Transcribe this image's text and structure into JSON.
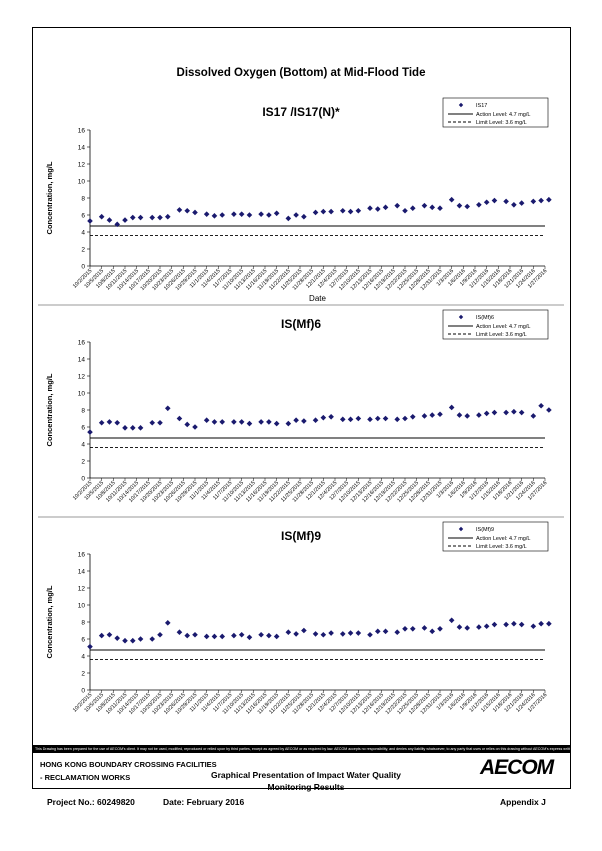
{
  "page": {
    "main_title": "Dissolved Oxygen (Bottom) at Mid-Flood Tide",
    "disclaimer": "This Drawing has been prepared for the use of AECOM's client. It may not be used, modified, reproduced or relied upon by third parties, except as agreed by AECOM or as required by law. AECOM accepts no responsibility, and denies any liability whatsoever, to any party that uses or relies on this drawing without AECOM's express written consent.",
    "project_name_1": "HONG KONG BOUNDARY CROSSING FACILITIES",
    "project_name_2": "- RECLAMATION WORKS",
    "doc_title_1": "Graphical Presentation of Impact Water Quality",
    "doc_title_2": "Monitoring Results",
    "logo": "AECOM",
    "project_no": "Project No.: 60249820",
    "date": "Date: February 2016",
    "appendix": "Appendix J"
  },
  "chart_data": [
    {
      "type": "scatter",
      "title": "IS17 /IS17(N)*",
      "xlabel": "Date",
      "ylabel": "Concentration, mg/L",
      "ylim": [
        0,
        16
      ],
      "yticks": [
        0,
        2,
        4,
        6,
        8,
        10,
        12,
        14,
        16
      ],
      "action_level": 4.7,
      "limit_level": 3.6,
      "legend": {
        "series": "IS17",
        "action": "Action Level: 4.7 mg/L",
        "limit": "Limit Level: 3.6 mg/L",
        "position": "top-right"
      },
      "xticks": [
        "10/2/2015",
        "10/5/2015",
        "10/8/2015",
        "10/11/2015",
        "10/14/2015",
        "10/17/2015",
        "10/20/2015",
        "10/23/2015",
        "10/26/2015",
        "10/29/2015",
        "11/1/2015",
        "11/4/2015",
        "11/7/2015",
        "11/10/2015",
        "11/13/2015",
        "11/16/2015",
        "11/19/2015",
        "11/22/2015",
        "11/25/2015",
        "11/28/2015",
        "12/1/2015",
        "12/4/2015",
        "12/7/2015",
        "12/10/2015",
        "12/13/2015",
        "12/16/2015",
        "12/19/2015",
        "12/22/2015",
        "12/25/2015",
        "12/28/2015",
        "12/31/2015",
        "1/3/2016",
        "1/6/2016",
        "1/9/2016",
        "1/12/2016",
        "1/15/2016",
        "1/18/2016",
        "1/21/2016",
        "1/24/2016",
        "1/27/2016"
      ],
      "x": [
        0,
        3,
        5,
        7,
        9,
        11,
        13,
        16,
        18,
        20,
        23,
        25,
        27,
        30,
        32,
        34,
        37,
        39,
        41,
        44,
        46,
        48,
        51,
        53,
        55,
        58,
        60,
        62,
        65,
        67,
        69,
        72,
        74,
        76,
        79,
        81,
        83,
        86,
        88,
        90,
        93,
        95,
        97,
        100,
        102,
        104,
        107,
        109,
        111,
        114,
        116,
        118
      ],
      "values": [
        5.3,
        5.8,
        5.4,
        4.9,
        5.4,
        5.7,
        5.7,
        5.7,
        5.7,
        5.8,
        6.6,
        6.5,
        6.3,
        6.1,
        5.9,
        6.0,
        6.1,
        6.1,
        6.0,
        6.1,
        6.0,
        6.2,
        5.6,
        6.0,
        5.8,
        6.3,
        6.4,
        6.4,
        6.5,
        6.4,
        6.5,
        6.8,
        6.7,
        6.9,
        7.1,
        6.5,
        6.8,
        7.1,
        6.9,
        6.8,
        7.8,
        7.1,
        7.0,
        7.2,
        7.5,
        7.7,
        7.6,
        7.2,
        7.4,
        7.6,
        7.7,
        7.8
      ]
    },
    {
      "type": "scatter",
      "title": "IS(Mf)6",
      "xlabel": "",
      "ylabel": "Concentration, mg/L",
      "ylim": [
        0,
        16
      ],
      "yticks": [
        0,
        2,
        4,
        6,
        8,
        10,
        12,
        14,
        16
      ],
      "action_level": 4.7,
      "limit_level": 3.6,
      "legend": {
        "series": "IS(Mf)6",
        "action": "Action Level: 4.7 mg/L",
        "limit": "Limit Level: 3.6 mg/L",
        "position": "top-right"
      },
      "xticks": [
        "10/2/2015",
        "10/5/2015",
        "10/8/2015",
        "10/11/2015",
        "10/14/2015",
        "10/17/2015",
        "10/20/2015",
        "10/23/2015",
        "10/26/2015",
        "10/29/2015",
        "11/1/2015",
        "11/4/2015",
        "11/7/2015",
        "11/10/2015",
        "11/13/2015",
        "11/16/2015",
        "11/19/2015",
        "11/22/2015",
        "11/25/2015",
        "11/28/2015",
        "12/1/2015",
        "12/4/2015",
        "12/7/2015",
        "12/10/2015",
        "12/13/2015",
        "12/16/2015",
        "12/19/2015",
        "12/22/2015",
        "12/25/2015",
        "12/28/2015",
        "12/31/2015",
        "1/3/2016",
        "1/6/2016",
        "1/9/2016",
        "1/12/2016",
        "1/15/2016",
        "1/18/2016",
        "1/21/2016",
        "1/24/2016",
        "1/27/2016"
      ],
      "x": [
        0,
        3,
        5,
        7,
        9,
        11,
        13,
        16,
        18,
        20,
        23,
        25,
        27,
        30,
        32,
        34,
        37,
        39,
        41,
        44,
        46,
        48,
        51,
        53,
        55,
        58,
        60,
        62,
        65,
        67,
        69,
        72,
        74,
        76,
        79,
        81,
        83,
        86,
        88,
        90,
        93,
        95,
        97,
        100,
        102,
        104,
        107,
        109,
        111,
        114,
        116,
        118
      ],
      "values": [
        5.4,
        6.5,
        6.6,
        6.5,
        5.9,
        5.9,
        5.9,
        6.5,
        6.5,
        8.2,
        7.0,
        6.3,
        6.0,
        6.8,
        6.6,
        6.6,
        6.6,
        6.6,
        6.4,
        6.6,
        6.6,
        6.4,
        6.4,
        6.8,
        6.7,
        6.8,
        7.1,
        7.2,
        6.9,
        6.9,
        7.0,
        6.9,
        7.0,
        7.0,
        6.9,
        7.0,
        7.2,
        7.3,
        7.4,
        7.5,
        8.3,
        7.4,
        7.3,
        7.4,
        7.6,
        7.7,
        7.7,
        7.8,
        7.7,
        7.3,
        8.5,
        8.0
      ]
    },
    {
      "type": "scatter",
      "title": "IS(Mf)9",
      "xlabel": "",
      "ylabel": "Concentration, mg/L",
      "ylim": [
        0,
        16
      ],
      "yticks": [
        0,
        2,
        4,
        6,
        8,
        10,
        12,
        14,
        16
      ],
      "action_level": 4.7,
      "limit_level": 3.6,
      "legend": {
        "series": "IS(Mf)9",
        "action": "Action Level: 4.7 mg/L",
        "limit": "Limit Level: 3.6 mg/L",
        "position": "top-right"
      },
      "xticks": [
        "10/2/2015",
        "10/5/2015",
        "10/8/2015",
        "10/11/2015",
        "10/14/2015",
        "10/17/2015",
        "10/20/2015",
        "10/23/2015",
        "10/26/2015",
        "10/29/2015",
        "11/1/2015",
        "11/4/2015",
        "11/7/2015",
        "11/10/2015",
        "11/13/2015",
        "11/16/2015",
        "11/19/2015",
        "11/22/2015",
        "11/25/2015",
        "11/28/2015",
        "12/1/2015",
        "12/4/2015",
        "12/7/2015",
        "12/10/2015",
        "12/13/2015",
        "12/16/2015",
        "12/19/2015",
        "12/22/2015",
        "12/25/2015",
        "12/28/2015",
        "12/31/2015",
        "1/3/2016",
        "1/6/2016",
        "1/9/2016",
        "1/12/2016",
        "1/15/2016",
        "1/18/2016",
        "1/21/2016",
        "1/24/2016",
        "1/27/2016"
      ],
      "x": [
        0,
        3,
        5,
        7,
        9,
        11,
        13,
        16,
        18,
        20,
        23,
        25,
        27,
        30,
        32,
        34,
        37,
        39,
        41,
        44,
        46,
        48,
        51,
        53,
        55,
        58,
        60,
        62,
        65,
        67,
        69,
        72,
        74,
        76,
        79,
        81,
        83,
        86,
        88,
        90,
        93,
        95,
        97,
        100,
        102,
        104,
        107,
        109,
        111,
        114,
        116,
        118
      ],
      "values": [
        5.1,
        6.4,
        6.5,
        6.1,
        5.8,
        5.8,
        6.0,
        6.0,
        6.5,
        7.9,
        6.8,
        6.4,
        6.5,
        6.3,
        6.3,
        6.3,
        6.4,
        6.5,
        6.2,
        6.5,
        6.4,
        6.3,
        6.8,
        6.6,
        7.0,
        6.6,
        6.5,
        6.7,
        6.6,
        6.7,
        6.7,
        6.5,
        6.9,
        6.9,
        6.8,
        7.2,
        7.2,
        7.3,
        6.9,
        7.2,
        8.2,
        7.4,
        7.3,
        7.4,
        7.5,
        7.7,
        7.7,
        7.8,
        7.7,
        7.5,
        7.8,
        7.8
      ]
    }
  ]
}
